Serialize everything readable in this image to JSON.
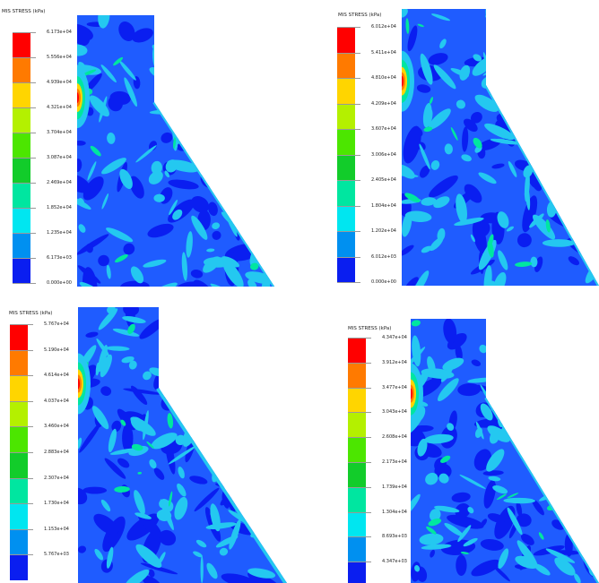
{
  "panels": [
    {
      "title": "MIS STRESS (kPa)",
      "labels": [
        "6.173e+04",
        "5.556e+04",
        "4.939e+04",
        "4.321e+04",
        "3.704e+04",
        "3.087e+04",
        "2.469e+04",
        "1.852e+04",
        "1.235e+04",
        "6.173e+03",
        "0.000e+00"
      ]
    },
    {
      "title": "MIS STRESS (kPa)",
      "labels": [
        "6.012e+04",
        "5.411e+04",
        "4.810e+04",
        "4.209e+04",
        "3.607e+04",
        "3.006e+04",
        "2.405e+04",
        "1.804e+04",
        "1.202e+04",
        "6.012e+03",
        "0.000e+00"
      ]
    },
    {
      "title": "MIS STRESS (kPa)",
      "labels": [
        "5.767e+04",
        "5.190e+04",
        "4.614e+04",
        "4.037e+04",
        "3.460e+04",
        "2.883e+04",
        "2.307e+04",
        "1.730e+04",
        "1.153e+04",
        "5.767e+03"
      ]
    },
    {
      "title": "MIS STRESS (kPa)",
      "labels": [
        "4.347e+04",
        "3.912e+04",
        "3.477e+04",
        "3.043e+04",
        "2.608e+04",
        "2.173e+04",
        "1.739e+04",
        "1.304e+04",
        "8.693e+03",
        "4.347e+03"
      ]
    }
  ],
  "colors": {
    "bands": [
      "#ff0000",
      "#ff7a00",
      "#ffd500",
      "#b4f000",
      "#4ce600",
      "#12cc2a",
      "#00e6a0",
      "#00e6f0",
      "#0090f0",
      "#0a1ef0"
    ],
    "field": "#1f5cff",
    "deep": "#0a1ef0",
    "light": "#24c8f0",
    "mid": "#00e6a0",
    "hot": [
      "#ffd500",
      "#ff7a00",
      "#ff0000"
    ]
  }
}
